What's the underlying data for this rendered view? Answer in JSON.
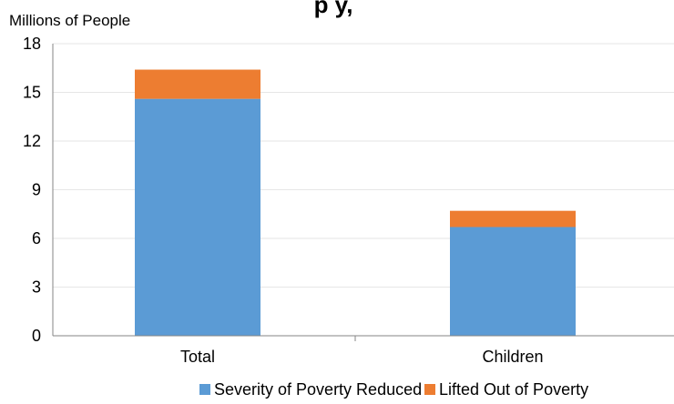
{
  "chart_data": {
    "type": "bar",
    "stacked": true,
    "title_fragment": "p                 y,",
    "ylabel": "Millions of People",
    "ylim": [
      0,
      18
    ],
    "yticks": [
      0,
      3,
      6,
      9,
      12,
      15,
      18
    ],
    "categories": [
      "Total",
      "Children"
    ],
    "series": [
      {
        "name": "Severity of Poverty Reduced",
        "values": [
          14.6,
          6.7
        ],
        "color": "#5b9bd5"
      },
      {
        "name": "Lifted Out of Poverty",
        "values": [
          1.8,
          1.0
        ],
        "color": "#ed7d31"
      }
    ],
    "grid": true,
    "legend_position": "bottom"
  }
}
